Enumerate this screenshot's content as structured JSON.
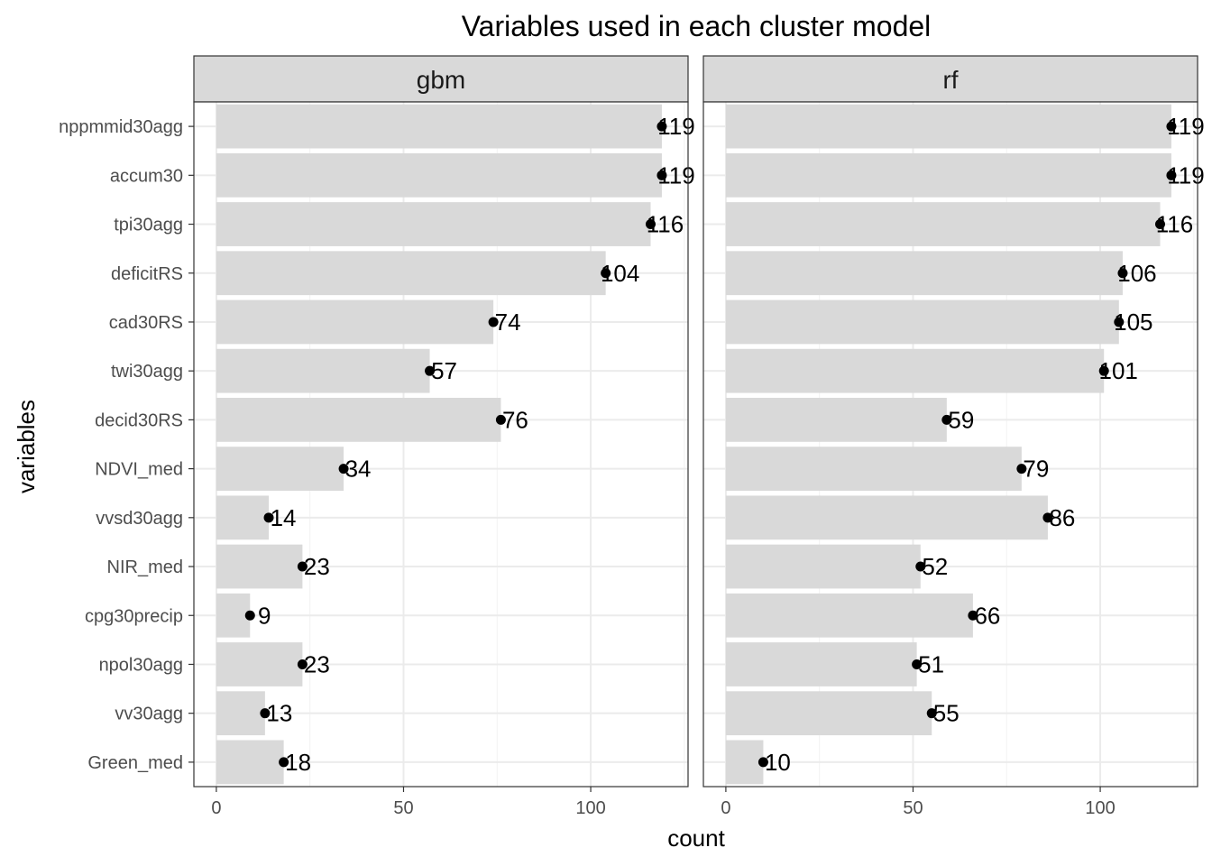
{
  "chart_data": {
    "type": "bar",
    "title": "Variables used in each cluster model",
    "xlabel": "count",
    "ylabel": "variables",
    "categories": [
      "nppmmid30agg",
      "accum30",
      "tpi30agg",
      "deficitRS",
      "cad30RS",
      "twi30agg",
      "decid30RS",
      "NDVI_med",
      "vvsd30agg",
      "NIR_med",
      "cpg30precip",
      "npol30agg",
      "vv30agg",
      "Green_med"
    ],
    "x_ticks": [
      0,
      50,
      100
    ],
    "xlim": [
      -6,
      126
    ],
    "grid": true,
    "orientation": "horizontal",
    "colors": {
      "bar": "#d9d9d9",
      "point": "#000000",
      "strip": "#d9d9d9",
      "panel_border": "#333333"
    },
    "panels": [
      {
        "name": "gbm",
        "values": [
          119,
          119,
          116,
          104,
          74,
          57,
          76,
          34,
          14,
          23,
          9,
          23,
          13,
          18
        ]
      },
      {
        "name": "rf",
        "values": [
          119,
          119,
          116,
          106,
          105,
          101,
          59,
          79,
          86,
          52,
          66,
          51,
          55,
          10
        ]
      }
    ]
  }
}
